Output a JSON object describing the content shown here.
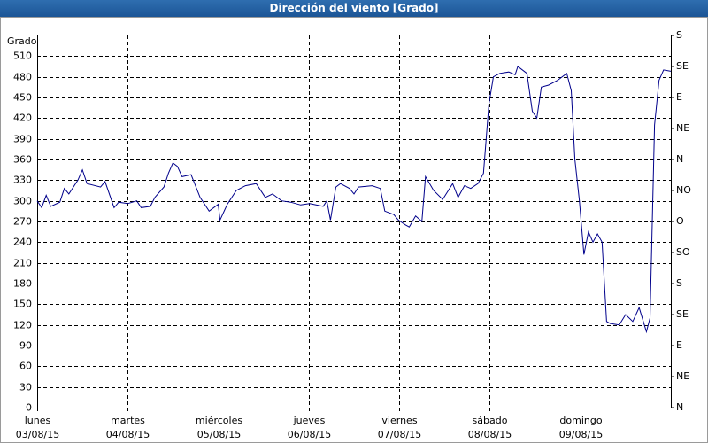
{
  "chart_data": {
    "type": "line",
    "title": "Dirección del viento [Grado]",
    "ylabel": "Grado",
    "xlim": [
      0,
      7
    ],
    "xticks": [
      {
        "value": 0,
        "label": "lunes",
        "date": "03/08/15"
      },
      {
        "value": 1,
        "label": "martes",
        "date": "04/08/15"
      },
      {
        "value": 2,
        "label": "miércoles",
        "date": "05/08/15"
      },
      {
        "value": 3,
        "label": "jueves",
        "date": "06/08/15"
      },
      {
        "value": 4,
        "label": "viernes",
        "date": "07/08/15"
      },
      {
        "value": 5,
        "label": "sábado",
        "date": "08/08/15"
      },
      {
        "value": 6,
        "label": "domingo",
        "date": "09/08/15"
      }
    ],
    "ylim": [
      0,
      540
    ],
    "yticks": [
      0,
      30,
      60,
      90,
      120,
      150,
      180,
      210,
      240,
      270,
      300,
      330,
      360,
      390,
      420,
      450,
      480,
      510
    ],
    "y2lim": [
      0,
      540
    ],
    "y2ticks": [
      {
        "value": 0,
        "label": "N"
      },
      {
        "value": 45,
        "label": "NE"
      },
      {
        "value": 90,
        "label": "E"
      },
      {
        "value": 135,
        "label": "SE"
      },
      {
        "value": 180,
        "label": "S"
      },
      {
        "value": 225,
        "label": "SO"
      },
      {
        "value": 270,
        "label": "O"
      },
      {
        "value": 315,
        "label": "NO"
      },
      {
        "value": 360,
        "label": "N"
      },
      {
        "value": 405,
        "label": "NE"
      },
      {
        "value": 450,
        "label": "E"
      },
      {
        "value": 495,
        "label": "SE"
      },
      {
        "value": 540,
        "label": "S"
      }
    ],
    "grid": true,
    "series": [
      {
        "color": "#00008b",
        "x": [
          0,
          0.05,
          0.1,
          0.15,
          0.25,
          0.3,
          0.35,
          0.45,
          0.5,
          0.55,
          0.7,
          0.75,
          0.85,
          0.9,
          1.0,
          1.1,
          1.15,
          1.25,
          1.3,
          1.4,
          1.45,
          1.5,
          1.55,
          1.6,
          1.7,
          1.8,
          1.9,
          2.0,
          2.02,
          2.1,
          2.2,
          2.3,
          2.42,
          2.52,
          2.6,
          2.7,
          2.8,
          2.91,
          3.01,
          3.16,
          3.2,
          3.24,
          3.3,
          3.35,
          3.45,
          3.5,
          3.55,
          3.7,
          3.79,
          3.84,
          3.94,
          3.99,
          4.07,
          4.11,
          4.18,
          4.25,
          4.29,
          4.38,
          4.48,
          4.59,
          4.65,
          4.72,
          4.79,
          4.87,
          4.93,
          4.99,
          5.04,
          5.11,
          5.21,
          5.28,
          5.31,
          5.41,
          5.47,
          5.52,
          5.57,
          5.65,
          5.75,
          5.85,
          5.9,
          5.94,
          5.99,
          6.04,
          6.09,
          6.14,
          6.19,
          6.24,
          6.29,
          6.33,
          6.43,
          6.5,
          6.58,
          6.65,
          6.73,
          6.77,
          6.82,
          6.87,
          6.92,
          7.0
        ],
        "values": [
          300,
          290,
          308,
          292,
          298,
          318,
          310,
          330,
          345,
          325,
          320,
          328,
          290,
          298,
          296,
          300,
          290,
          292,
          305,
          320,
          340,
          355,
          350,
          335,
          338,
          305,
          285,
          295,
          272,
          295,
          315,
          322,
          325,
          305,
          310,
          300,
          298,
          294,
          296,
          292,
          300,
          272,
          320,
          325,
          318,
          310,
          320,
          322,
          318,
          285,
          280,
          272,
          265,
          262,
          278,
          270,
          335,
          315,
          302,
          325,
          305,
          322,
          318,
          325,
          340,
          440,
          480,
          485,
          487,
          483,
          495,
          485,
          430,
          420,
          465,
          468,
          475,
          485,
          460,
          360,
          300,
          222,
          255,
          240,
          252,
          240,
          125,
          122,
          120,
          135,
          125,
          145,
          110,
          130,
          410,
          475,
          490,
          488
        ]
      }
    ]
  }
}
